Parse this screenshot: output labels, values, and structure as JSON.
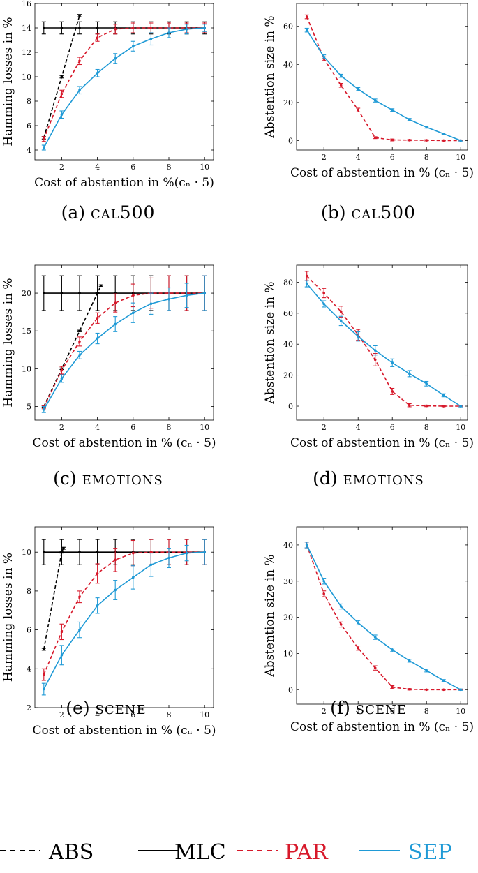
{
  "colors": {
    "abs": "#000000",
    "mlc": "#000000",
    "par": "#d7192b",
    "sep": "#1f9ad6"
  },
  "legend": [
    {
      "key": "abs",
      "label": "ABS",
      "dashed": true
    },
    {
      "key": "mlc",
      "label": "MLC",
      "dashed": false
    },
    {
      "key": "par",
      "label": "PAR",
      "dashed": true
    },
    {
      "key": "sep",
      "label": "SEP",
      "dashed": false
    }
  ],
  "chart_data": [
    {
      "id": "a",
      "type": "line",
      "caption_prefix": "(a)",
      "caption_name": "cal500",
      "xlabel": "Cost of abstention in %(cₙ · 5)",
      "ylabel": "Hamming losses in %",
      "xlim": [
        0.5,
        10.5
      ],
      "ylim": [
        3.2,
        16
      ],
      "xticks": [
        2,
        4,
        6,
        8,
        10
      ],
      "yticks": [
        4,
        6,
        8,
        10,
        12,
        14,
        16
      ],
      "series": [
        {
          "key": "abs",
          "dashed": true,
          "x": [
            1,
            2,
            3
          ],
          "y": [
            5.0,
            10.0,
            15.0
          ],
          "err": [
            0.1,
            0.1,
            0.1
          ]
        },
        {
          "key": "mlc",
          "dashed": false,
          "x": [
            1,
            2,
            3,
            4,
            5,
            6,
            7,
            8,
            9,
            10
          ],
          "y": [
            14,
            14,
            14,
            14,
            14,
            14,
            14,
            14,
            14,
            14
          ],
          "err": [
            0.5,
            0.5,
            0.5,
            0.5,
            0.5,
            0.5,
            0.5,
            0.5,
            0.5,
            0.5
          ]
        },
        {
          "key": "par",
          "dashed": true,
          "x": [
            1,
            2,
            3,
            4,
            5,
            6,
            7,
            8,
            9,
            10
          ],
          "y": [
            4.9,
            8.6,
            11.3,
            13.2,
            13.9,
            14,
            14,
            14,
            14,
            14
          ],
          "err": [
            0.2,
            0.3,
            0.3,
            0.3,
            0.4,
            0.4,
            0.4,
            0.4,
            0.4,
            0.4
          ]
        },
        {
          "key": "sep",
          "dashed": false,
          "x": [
            1,
            2,
            3,
            4,
            5,
            6,
            7,
            8,
            9,
            10
          ],
          "y": [
            4.2,
            6.9,
            8.9,
            10.3,
            11.5,
            12.5,
            13.1,
            13.6,
            13.9,
            14
          ],
          "err": [
            0.2,
            0.3,
            0.3,
            0.3,
            0.4,
            0.4,
            0.5,
            0.4,
            0.4,
            0.3
          ]
        }
      ]
    },
    {
      "id": "b",
      "type": "line",
      "caption_prefix": "(b)",
      "caption_name": "cal500",
      "xlabel": "Cost of abstention in % (cₙ · 5)",
      "ylabel": "Abstention size in %",
      "xlim": [
        0.4,
        10.4
      ],
      "ylim": [
        -5,
        72
      ],
      "xticks": [
        2,
        4,
        6,
        8,
        10
      ],
      "yticks": [
        0,
        20,
        40,
        60
      ],
      "series": [
        {
          "key": "par",
          "dashed": true,
          "x": [
            1,
            2,
            3,
            4,
            5,
            6,
            7,
            8,
            9,
            10
          ],
          "y": [
            65,
            43,
            29,
            16,
            1.5,
            0.3,
            0.2,
            0.1,
            0,
            0
          ],
          "err": [
            1,
            1,
            1,
            1,
            0.5,
            0.5,
            0.3,
            0.3,
            0.2,
            0.2
          ]
        },
        {
          "key": "sep",
          "dashed": false,
          "x": [
            1,
            2,
            3,
            4,
            5,
            6,
            7,
            8,
            9,
            10
          ],
          "y": [
            58,
            44,
            34,
            27,
            21,
            16,
            11,
            7,
            3.5,
            0
          ],
          "err": [
            1,
            1,
            0.8,
            0.8,
            0.8,
            0.7,
            0.6,
            0.5,
            0.4,
            0.3
          ]
        }
      ]
    },
    {
      "id": "c",
      "type": "line",
      "caption_prefix": "(c)",
      "caption_name": "emotions",
      "xlabel": "Cost of abstention in % (cₙ · 5)",
      "ylabel": "Hamming losses in %",
      "xlim": [
        0.5,
        10.5
      ],
      "ylim": [
        3.2,
        23.7
      ],
      "xticks": [
        2,
        4,
        6,
        8,
        10
      ],
      "yticks": [
        5,
        10,
        15,
        20
      ],
      "series": [
        {
          "key": "abs",
          "dashed": true,
          "x": [
            1,
            2,
            3,
            4,
            4.2
          ],
          "y": [
            5,
            10,
            15,
            20,
            21
          ],
          "err": [
            0.1,
            0.1,
            0.1,
            0.1,
            0.1
          ]
        },
        {
          "key": "mlc",
          "dashed": false,
          "x": [
            1,
            2,
            3,
            4,
            5,
            6,
            7,
            8,
            9,
            10
          ],
          "y": [
            20,
            20,
            20,
            20,
            20,
            20,
            20,
            20,
            20,
            20
          ],
          "err": [
            2.3,
            2.3,
            2.3,
            2.3,
            2.3,
            2.3,
            2.3,
            2.3,
            2.3,
            2.3
          ]
        },
        {
          "key": "par",
          "dashed": true,
          "x": [
            1,
            2,
            3,
            4,
            5,
            6,
            7,
            8,
            9,
            10
          ],
          "y": [
            4.9,
            9.8,
            13.6,
            16.7,
            18.7,
            19.7,
            20,
            20,
            20,
            20
          ],
          "err": [
            0.2,
            0.5,
            0.6,
            0.7,
            1.2,
            1.5,
            2,
            2.3,
            2.3,
            2.3
          ]
        },
        {
          "key": "sep",
          "dashed": false,
          "x": [
            1,
            2,
            3,
            4,
            5,
            6,
            7,
            8,
            9,
            10
          ],
          "y": [
            4.6,
            8.7,
            11.8,
            14,
            15.9,
            17.4,
            18.6,
            19.2,
            19.7,
            20
          ],
          "err": [
            0.4,
            0.5,
            0.5,
            0.7,
            1,
            1.3,
            1.4,
            1.5,
            1.6,
            2.3
          ]
        }
      ]
    },
    {
      "id": "d",
      "type": "line",
      "caption_prefix": "(d)",
      "caption_name": "emotions",
      "xlabel": "Cost of abstention in % (cₙ · 5)",
      "ylabel": "Abstention size in %",
      "xlim": [
        0.4,
        10.4
      ],
      "ylim": [
        -9,
        91
      ],
      "xticks": [
        2,
        4,
        6,
        8,
        10
      ],
      "yticks": [
        0,
        20,
        40,
        60,
        80
      ],
      "series": [
        {
          "key": "par",
          "dashed": true,
          "x": [
            1,
            2,
            3,
            4,
            5,
            6,
            7,
            8,
            9,
            10
          ],
          "y": [
            84,
            73,
            61,
            46,
            30,
            9.5,
            0.6,
            0.2,
            0,
            0
          ],
          "err": [
            3,
            3,
            3.5,
            3.5,
            4,
            2,
            1,
            0.5,
            0.3,
            0.3
          ]
        },
        {
          "key": "sep",
          "dashed": false,
          "x": [
            1,
            2,
            3,
            4,
            5,
            6,
            7,
            8,
            9,
            10
          ],
          "y": [
            79,
            66,
            55,
            45,
            36,
            28,
            21,
            14.5,
            7,
            0
          ],
          "err": [
            2,
            2,
            3,
            3,
            3,
            2.5,
            2,
            1.5,
            1,
            0.5
          ]
        }
      ]
    },
    {
      "id": "e",
      "type": "line",
      "caption_prefix": "(e)",
      "caption_name": "scene",
      "xlabel": "Cost of abstention in % (cₙ · 5)",
      "ylabel": "Hamming losses in %",
      "xlim": [
        0.5,
        10.5
      ],
      "ylim": [
        2,
        11.3
      ],
      "xticks": [
        2,
        4,
        6,
        8,
        10
      ],
      "yticks": [
        2,
        4,
        6,
        8,
        10
      ],
      "series": [
        {
          "key": "abs",
          "dashed": true,
          "x": [
            1,
            2,
            2.1
          ],
          "y": [
            5,
            10,
            10.2
          ],
          "err": [
            0.05,
            0.05,
            0.05
          ]
        },
        {
          "key": "mlc",
          "dashed": false,
          "x": [
            1,
            2,
            3,
            4,
            5,
            6,
            7,
            8,
            9,
            10
          ],
          "y": [
            10,
            10,
            10,
            10,
            10,
            10,
            10,
            10,
            10,
            10
          ],
          "err": [
            0.65,
            0.65,
            0.65,
            0.65,
            0.65,
            0.65,
            0.65,
            0.65,
            0.65,
            0.65
          ]
        },
        {
          "key": "par",
          "dashed": true,
          "x": [
            1,
            2,
            3,
            4,
            5,
            6,
            7,
            8,
            9,
            10
          ],
          "y": [
            3.7,
            5.9,
            7.7,
            8.9,
            9.6,
            9.95,
            10,
            10,
            10,
            10
          ],
          "err": [
            0.3,
            0.4,
            0.3,
            0.5,
            0.6,
            0.65,
            0.65,
            0.65,
            0.65,
            0.65
          ]
        },
        {
          "key": "sep",
          "dashed": false,
          "x": [
            1,
            2,
            3,
            4,
            5,
            6,
            7,
            8,
            9,
            10
          ],
          "y": [
            2.95,
            4.7,
            6,
            7.25,
            8.05,
            8.7,
            9.35,
            9.7,
            9.95,
            10
          ],
          "err": [
            0.3,
            0.5,
            0.4,
            0.4,
            0.5,
            0.6,
            0.6,
            0.5,
            0.4,
            0.65
          ]
        }
      ]
    },
    {
      "id": "f",
      "type": "line",
      "caption_prefix": "(f)",
      "caption_name": "scene",
      "xlabel": "Cost of abstention in % (cₙ · 5)",
      "ylabel": "Abstention size in %",
      "xlim": [
        0.4,
        10.4
      ],
      "ylim": [
        -4,
        45
      ],
      "xticks": [
        2,
        4,
        6,
        8,
        10
      ],
      "yticks": [
        0,
        10,
        20,
        30,
        40
      ],
      "series": [
        {
          "key": "par",
          "dashed": true,
          "x": [
            1,
            2,
            3,
            4,
            5,
            6,
            7,
            8,
            9,
            10
          ],
          "y": [
            40,
            26.5,
            18,
            11.5,
            6,
            0.7,
            0.1,
            0,
            0,
            0
          ],
          "err": [
            0.8,
            0.8,
            0.7,
            0.6,
            0.6,
            0.4,
            0.2,
            0.1,
            0.1,
            0.1
          ]
        },
        {
          "key": "sep",
          "dashed": false,
          "x": [
            1,
            2,
            3,
            4,
            5,
            6,
            7,
            8,
            9,
            10
          ],
          "y": [
            40,
            30,
            23,
            18.5,
            14.5,
            11,
            8,
            5.3,
            2.5,
            0
          ],
          "err": [
            0.8,
            0.8,
            0.7,
            0.6,
            0.6,
            0.5,
            0.4,
            0.4,
            0.3,
            0.2
          ]
        }
      ]
    }
  ]
}
